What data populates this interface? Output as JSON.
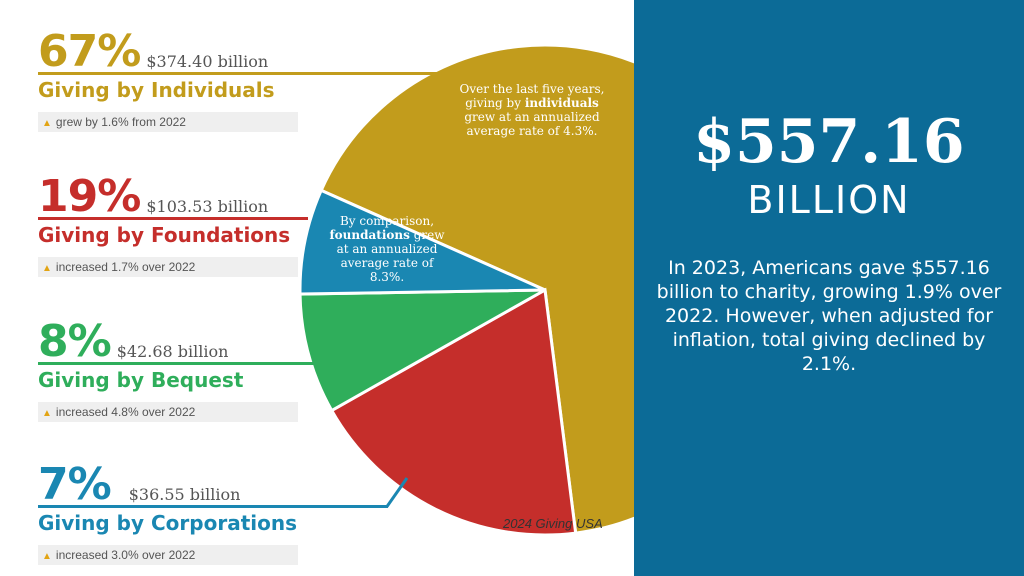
{
  "chart_data": {
    "type": "pie",
    "slices": [
      {
        "name": "Giving by Individuals",
        "percent": 67,
        "amount": "$374.40 billion",
        "change": "grew by 1.6% from 2022",
        "color": "#c29c1c"
      },
      {
        "name": "Giving by Foundations",
        "percent": 19,
        "amount": "$103.53 billion",
        "change": "increased 1.7% over 2022",
        "color": "#c52e2b"
      },
      {
        "name": "Giving by Bequest",
        "percent": 8,
        "amount": "$42.68 billion",
        "change": "increased 4.8% over 2022",
        "color": "#2fae5b"
      },
      {
        "name": "Giving by Corporations",
        "percent": 7,
        "amount": "$36.55 billion",
        "change": "increased 3.0% over 2022",
        "color": "#1a87b2"
      }
    ],
    "percent_labels": [
      "67%",
      "19%",
      "8%",
      "7%"
    ],
    "notes": {
      "individuals": {
        "pre": "Over the last five years, giving by ",
        "bold": "individuals",
        "post": " grew at an annualized average rate of 4.3%."
      },
      "foundations": {
        "pre": "By comparison, ",
        "bold": "foundations",
        "post": " grew at an annualized average rate of 8.3%."
      }
    },
    "source": "2024 Giving USA"
  },
  "summary": {
    "total": "$557.16",
    "unit": "BILLION",
    "text": "In 2023, Americans gave $557.16 billion to charity, growing 1.9% over 2022. However, when adjusted for inflation, total giving declined by 2.1%."
  }
}
